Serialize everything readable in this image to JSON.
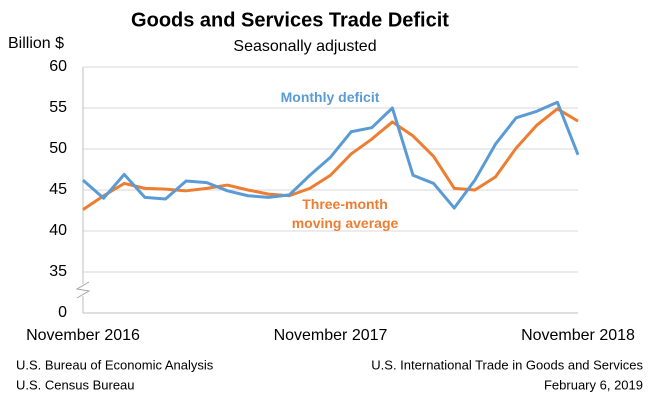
{
  "chart_data": {
    "type": "line",
    "title": "Goods and Services Trade Deficit",
    "subtitle": "Seasonally adjusted",
    "y_label": "Billion $",
    "categories": [
      "November 2016",
      null,
      null,
      null,
      null,
      null,
      null,
      null,
      null,
      null,
      null,
      null,
      "November 2017",
      null,
      null,
      null,
      null,
      null,
      null,
      null,
      null,
      null,
      null,
      null,
      "November 2018"
    ],
    "series": [
      {
        "name": "Monthly deficit",
        "color": "#5b9bd5",
        "values": [
          46.2,
          44.0,
          46.9,
          44.1,
          43.9,
          46.1,
          45.9,
          44.9,
          44.3,
          44.1,
          44.4,
          46.8,
          49.0,
          52.1,
          52.6,
          55.0,
          46.8,
          45.8,
          42.8,
          46.2,
          50.6,
          53.8,
          54.6,
          55.7,
          49.3
        ]
      },
      {
        "name": "Three-month moving average",
        "color": "#ed7d31",
        "values": [
          42.6,
          44.3,
          45.8,
          45.2,
          45.1,
          44.9,
          45.2,
          45.6,
          45.0,
          44.5,
          44.3,
          45.2,
          46.8,
          49.4,
          51.2,
          53.3,
          51.6,
          49.1,
          45.2,
          45.0,
          46.6,
          50.1,
          52.9,
          54.9,
          53.4
        ]
      }
    ],
    "ylim": [
      0,
      60
    ],
    "yticks": [
      0,
      35,
      40,
      45,
      50,
      55,
      60
    ],
    "axis_break": true,
    "grid": true,
    "source": [
      "U.S. Bureau of Economic Analysis",
      "U.S. Census Bureau"
    ],
    "notes": [
      "U.S. International Trade in Goods and Services",
      "February 6, 2019"
    ]
  }
}
